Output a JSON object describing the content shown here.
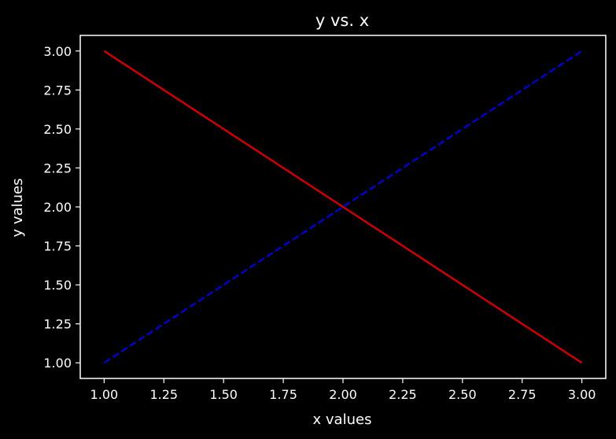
{
  "chart_data": {
    "type": "line",
    "title": "y vs. x",
    "xlabel": "x values",
    "ylabel": "y values",
    "xlim": [
      0.9,
      3.1
    ],
    "ylim": [
      0.9,
      3.1
    ],
    "x_ticks": [
      "1.00",
      "1.25",
      "1.50",
      "1.75",
      "2.00",
      "2.25",
      "2.50",
      "2.75",
      "3.00"
    ],
    "y_ticks": [
      "1.00",
      "1.25",
      "1.50",
      "1.75",
      "2.00",
      "2.25",
      "2.50",
      "2.75",
      "3.00"
    ],
    "grid": false,
    "legend": "none",
    "series": [
      {
        "x": [
          1,
          2,
          3
        ],
        "y": [
          3,
          2,
          1
        ],
        "color": "#cc0000",
        "dash": "solid"
      },
      {
        "x": [
          1,
          2,
          3
        ],
        "y": [
          1,
          2,
          3
        ],
        "color": "#0000cc",
        "dash": "dashed"
      }
    ]
  },
  "colors": {
    "background": "#000000",
    "axes": "#ffffff",
    "text": "#ffffff"
  }
}
